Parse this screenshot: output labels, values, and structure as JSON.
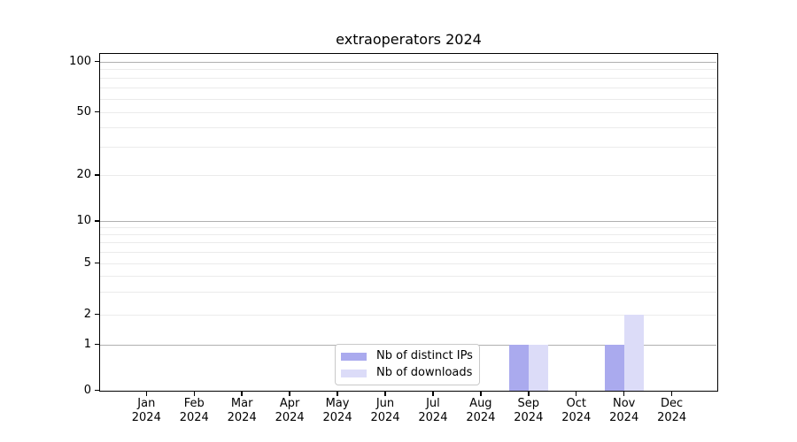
{
  "chart_data": {
    "type": "bar",
    "title": "extraoperators 2024",
    "categories": [
      "Jan 2024",
      "Feb 2024",
      "Mar 2024",
      "Apr 2024",
      "May 2024",
      "Jun 2024",
      "Jul 2024",
      "Aug 2024",
      "Sep 2024",
      "Oct 2024",
      "Nov 2024",
      "Dec 2024"
    ],
    "series": [
      {
        "name": "Nb of distinct IPs",
        "color": "#aaaaee",
        "values": [
          0,
          0,
          0,
          0,
          0,
          0,
          0,
          0,
          1,
          0,
          1,
          0
        ]
      },
      {
        "name": "Nb of downloads",
        "color": "#dcdcf8",
        "values": [
          0,
          0,
          0,
          0,
          0,
          0,
          0,
          0,
          1,
          0,
          2,
          0
        ]
      }
    ],
    "yaxis": {
      "scale": "log-with-zero",
      "tick_labels": [
        "0",
        "1",
        "2",
        "5",
        "10",
        "20",
        "50",
        "100"
      ],
      "tick_values": [
        0,
        1,
        2,
        5,
        10,
        20,
        50,
        100
      ],
      "ylim": [
        0,
        115
      ]
    },
    "xlabel": "",
    "ylabel": "",
    "grid": {
      "enabled": true,
      "major_color": "#b0b0b0",
      "minor_color": "#ebebeb"
    },
    "legend": {
      "position": "inside-bottom-center"
    },
    "colors": {
      "axis": "#000000",
      "background": "#ffffff",
      "text": "#000000"
    }
  }
}
